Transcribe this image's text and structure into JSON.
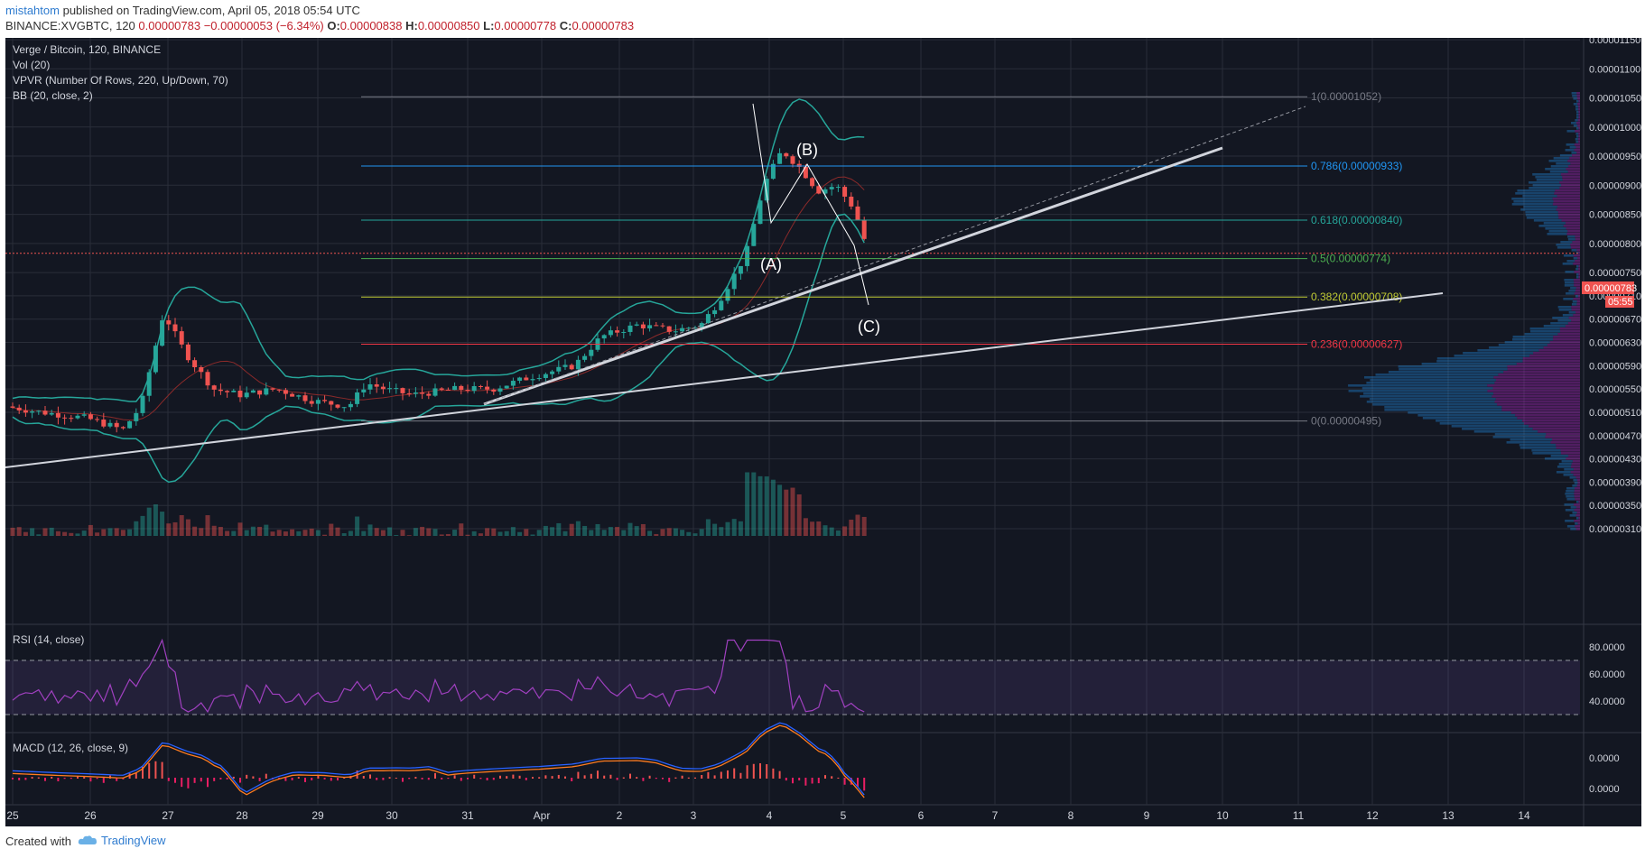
{
  "header": {
    "author": "mistahtom",
    "published": "published on TradingView.com, April 05, 2018 05:54 UTC",
    "symbol": "BINANCE:XVGBTC, 120",
    "last": "0.00000783",
    "change": "−0.00000053 (−6.34%)",
    "o_label": "O:",
    "o": "0.00000838",
    "h_label": "H:",
    "h": "0.00000850",
    "l_label": "L:",
    "l": "0.00000778",
    "c_label": "C:",
    "c": "0.00000783"
  },
  "legend": {
    "title": "Verge / Bitcoin, 120, BINANCE",
    "vol": "Vol (20)",
    "vpvr": "VPVR (Number Of Rows, 220, Up/Down, 70)",
    "bb": "BB (20, close, 2)",
    "rsi": "RSI (14, close)",
    "macd": "MACD (12, 26, close, 9)"
  },
  "price_badge": "0.00000783",
  "countdown_badge": "05:55",
  "wave_labels": {
    "a": "(A)",
    "b": "(B)",
    "c": "(C)"
  },
  "footer": {
    "created": "Created with",
    "brand": "TradingView"
  },
  "colors": {
    "background": "#131722",
    "up": "#26a69a",
    "down": "#ef5350",
    "bb": "#26a69a",
    "rsi": "#a040c0",
    "macd": "#2962ff",
    "signal": "#ff7c1f",
    "price_line": "#ef5350"
  },
  "chart_data": {
    "type": "candlestick",
    "x_ticks": [
      "25",
      "26",
      "27",
      "28",
      "29",
      "30",
      "31",
      "Apr",
      "2",
      "3",
      "4",
      "5",
      "6",
      "7",
      "8",
      "9",
      "10",
      "11",
      "12",
      "13",
      "14"
    ],
    "y_ticks": [
      "0.00001150",
      "0.00001100",
      "0.00001050",
      "0.00001000",
      "0.00000950",
      "0.00000900",
      "0.00000850",
      "0.00000800",
      "0.00000750",
      "0.00000710",
      "0.00000670",
      "0.00000630",
      "0.00000590",
      "0.00000550",
      "0.00000510",
      "0.00000470",
      "0.00000430",
      "0.00000390",
      "0.00000350",
      "0.00000310"
    ],
    "price_ticks": [
      1.15e-05,
      1.1e-05,
      1.05e-05,
      1e-05,
      9.5e-06,
      9e-06,
      8.5e-06,
      8e-06,
      7.5e-06,
      7.1e-06,
      6.7e-06,
      6.3e-06,
      5.9e-06,
      5.5e-06,
      5.1e-06,
      4.7e-06,
      4.3e-06,
      3.9e-06,
      3.5e-06,
      3.1e-06
    ],
    "fibonacci": [
      {
        "label": "1(0.00001052)",
        "price": 1.052e-05,
        "color": "#787b86"
      },
      {
        "label": "0.786(0.00000933)",
        "price": 9.33e-06,
        "color": "#2196f3"
      },
      {
        "label": "0.618(0.00000840)",
        "price": 8.4e-06,
        "color": "#26a69a"
      },
      {
        "label": "0.5(0.00000774)",
        "price": 7.74e-06,
        "color": "#4caf50"
      },
      {
        "label": "0.382(0.00000708)",
        "price": 7.08e-06,
        "color": "#c0ca33"
      },
      {
        "label": "0.236(0.00000627)",
        "price": 6.27e-06,
        "color": "#f23645"
      },
      {
        "label": "0(0.00000495)",
        "price": 4.95e-06,
        "color": "#787b86"
      }
    ],
    "last_price": 7.83e-06,
    "rsi_ticks": [
      "80.0000",
      "60.0000",
      "40.0000"
    ],
    "rsi_values": [
      80,
      60,
      40
    ],
    "rsi_bands": [
      70,
      30
    ],
    "macd_ticks": [
      "0.0000",
      "0.0000"
    ],
    "ohlc_notes": "Candlestick series: XVG/BTC 2-hour candles from Mar 25 to Apr 5 2018",
    "key_points": [
      {
        "date": "Mar 27",
        "high": 7.1e-06
      },
      {
        "date": "Apr 3-4",
        "high": 1.052e-05
      },
      {
        "date": "Apr 5",
        "close": 7.83e-06
      }
    ]
  }
}
